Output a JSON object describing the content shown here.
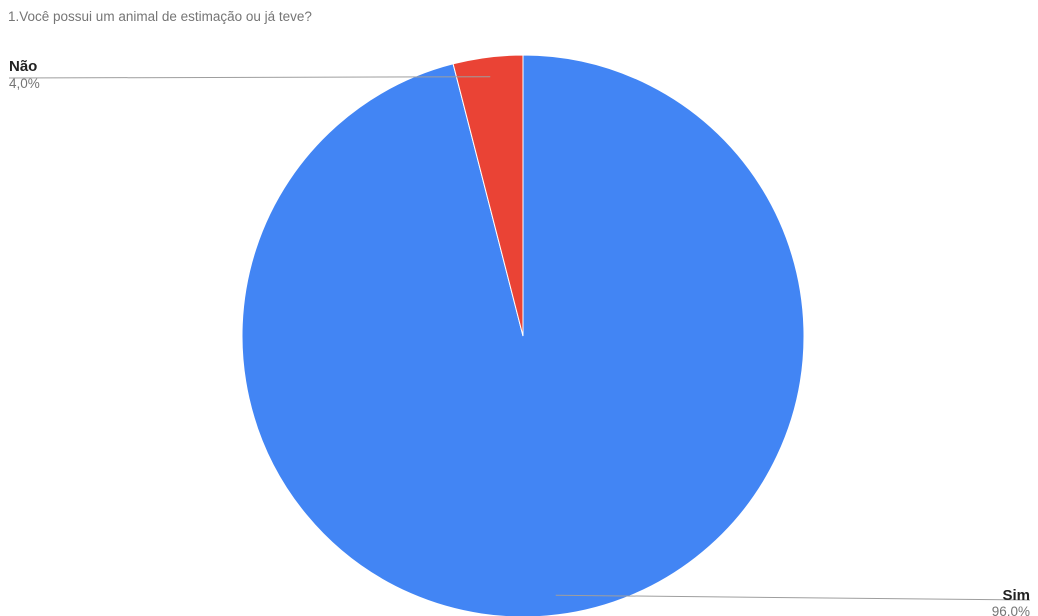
{
  "chart_data": {
    "type": "pie",
    "title": "1.Você possui um animal de estimação ou já teve?",
    "slices": [
      {
        "label": "Sim",
        "value": 96.0,
        "value_label": "96,0%",
        "color": "#4285F4"
      },
      {
        "label": "Não",
        "value": 4.0,
        "value_label": "4,0%",
        "color": "#EA4335"
      }
    ],
    "start_angle": "12 o'clock",
    "direction": "clockwise",
    "labels": "outside, with leader lines"
  }
}
